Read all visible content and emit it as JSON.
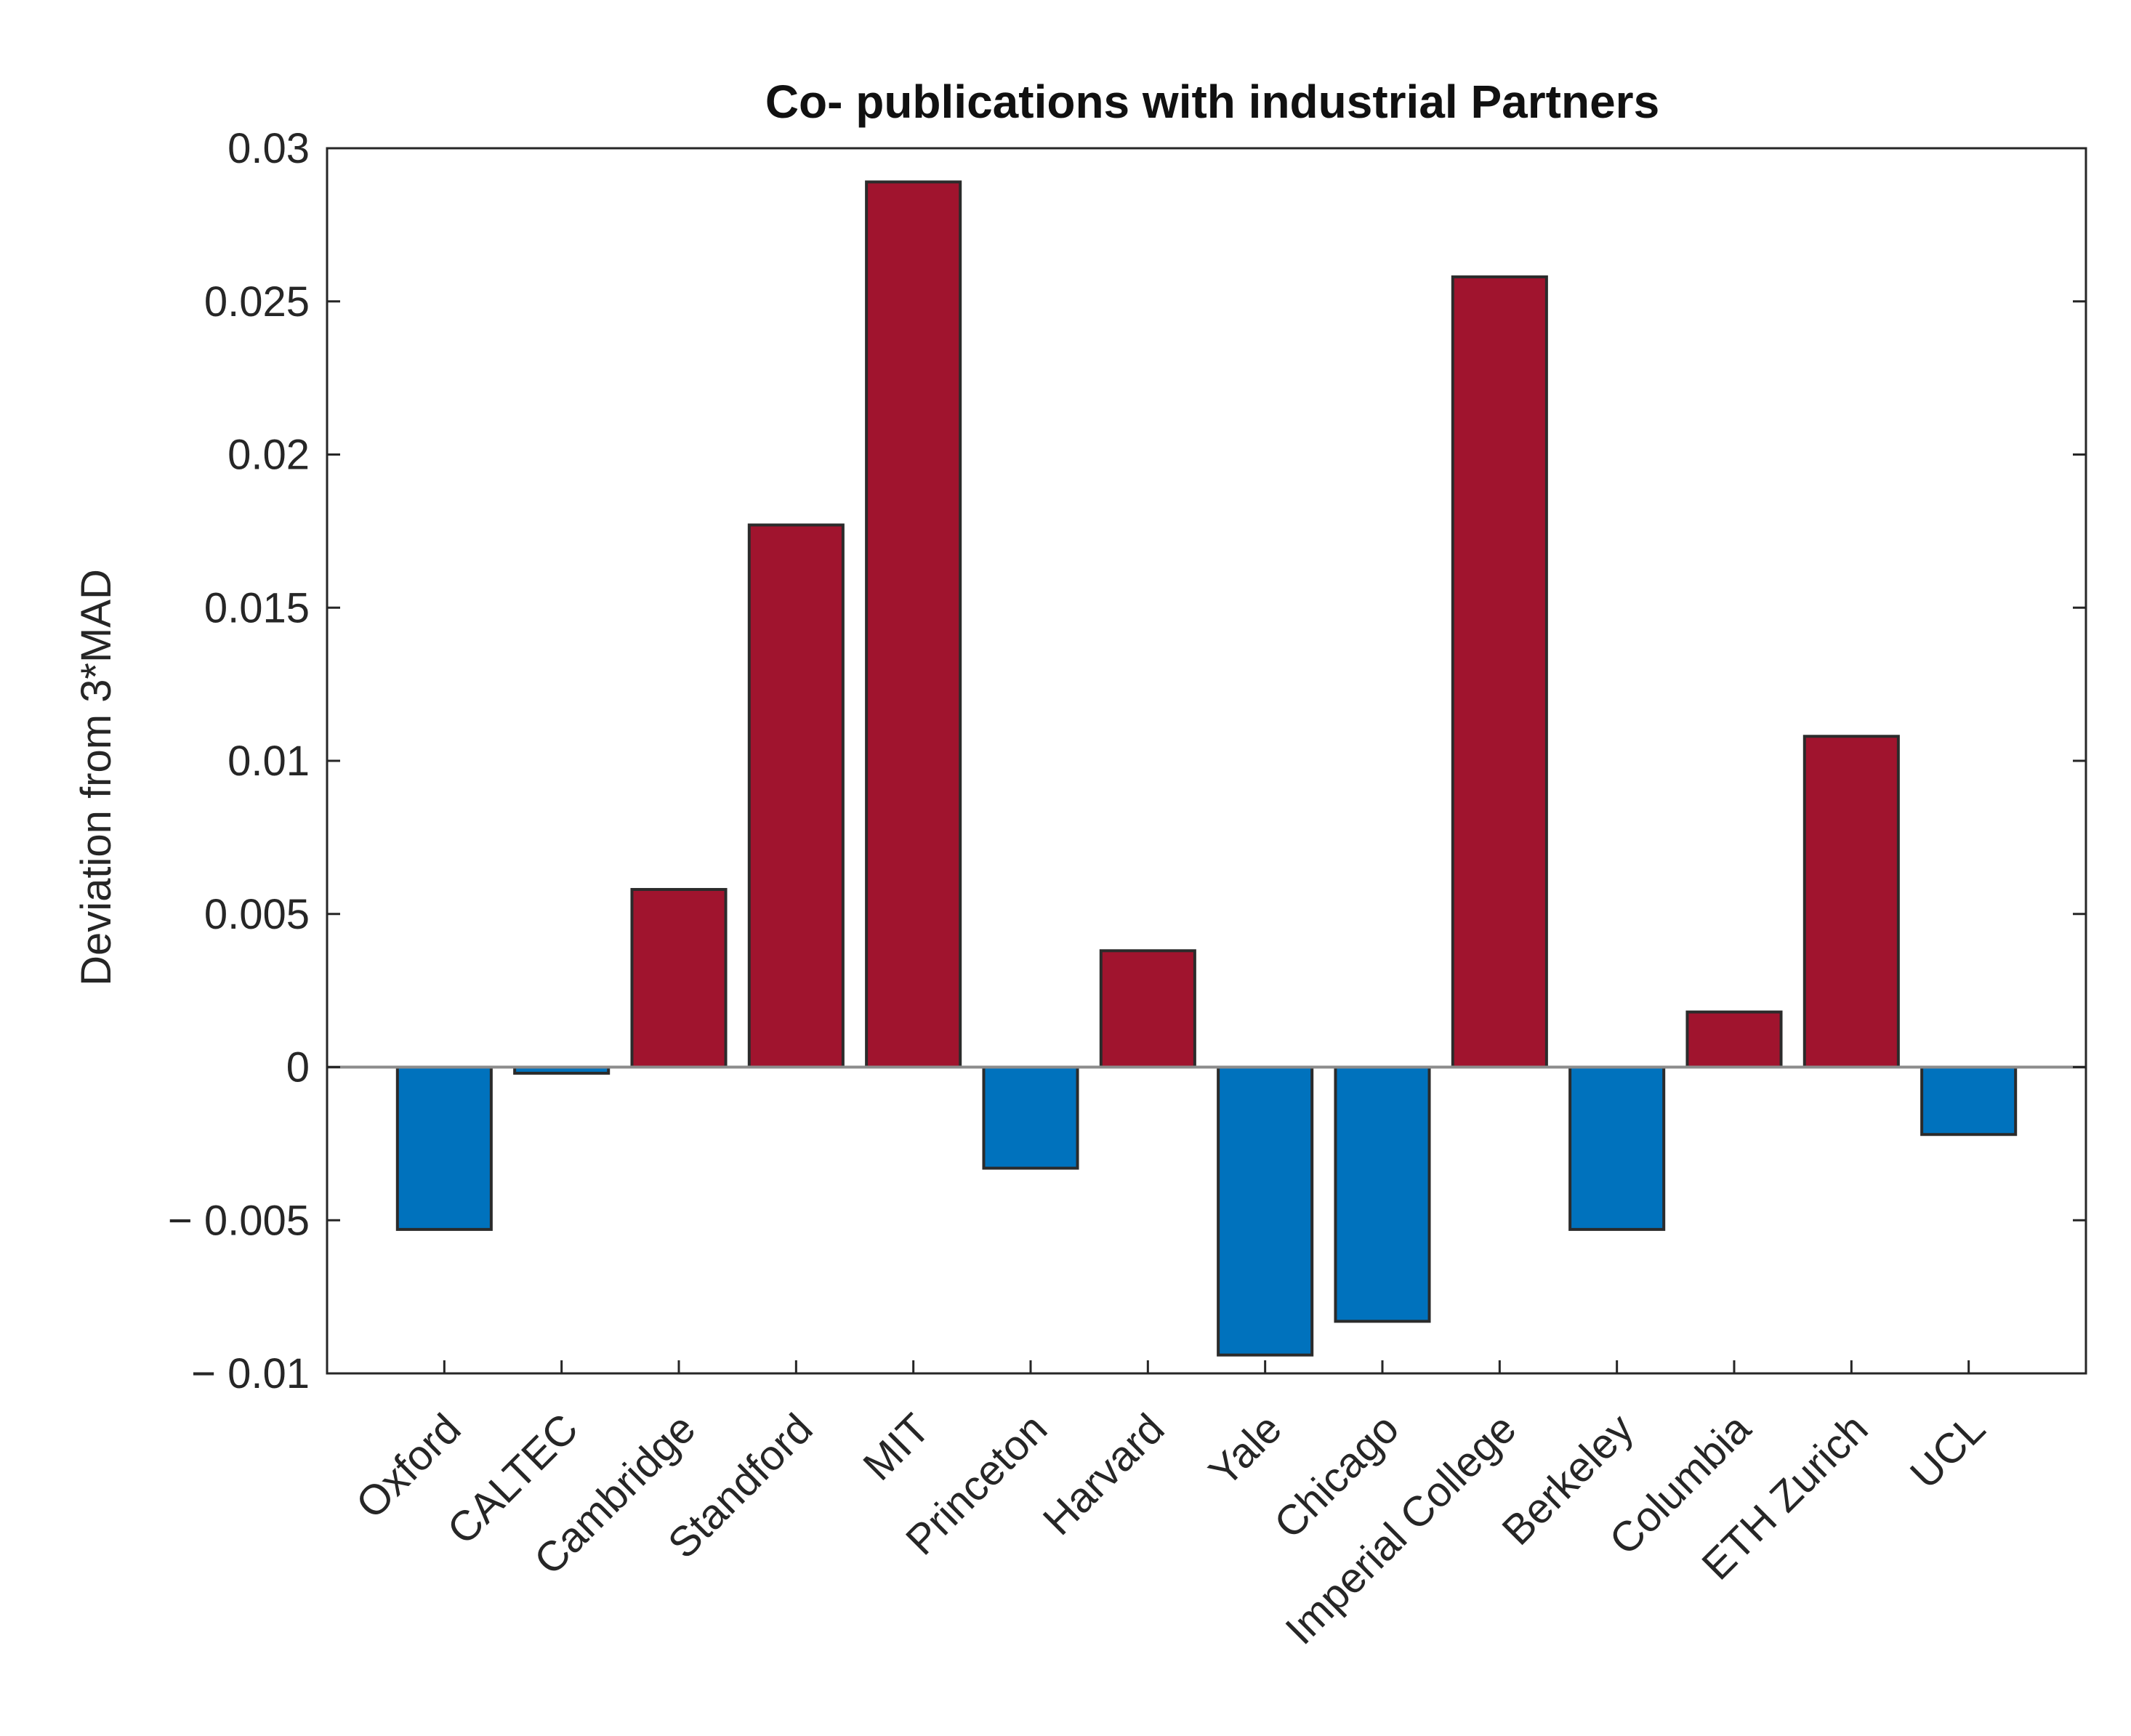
{
  "chart_data": {
    "type": "bar",
    "title": "Co- publications with industrial Partners",
    "xlabel": "",
    "ylabel": "Deviation from 3*MAD",
    "ylim": [
      -0.01,
      0.03
    ],
    "yticks": [
      0.03,
      0.025,
      0.02,
      0.015,
      0.01,
      0.005,
      0,
      -0.005,
      -0.01
    ],
    "ytick_labels": [
      "0.03",
      "0.025",
      "0.02",
      "0.015",
      "0.01",
      "0.005",
      "0",
      "− 0.005",
      "− 0.01"
    ],
    "categories": [
      "Oxford",
      "CALTEC",
      "Cambridge",
      "Standford",
      "MIT",
      "Princeton",
      "Harvard",
      "Yale",
      "Chicago",
      "Imperial College",
      "Berkeley",
      "Columbia",
      "ETH Zurich",
      "UCL"
    ],
    "values": [
      -0.0053,
      -0.0002,
      0.0058,
      0.0177,
      0.0289,
      -0.0033,
      0.0038,
      -0.0094,
      -0.0083,
      0.0258,
      -0.0053,
      0.0018,
      0.0108,
      -0.0022
    ],
    "grid": false,
    "colors": {
      "positive": "#A0142E",
      "negative": "#0072BD",
      "bar_edge": "#2B2B2B",
      "axis": "#262626",
      "baseline": "#8C8C8C"
    }
  }
}
